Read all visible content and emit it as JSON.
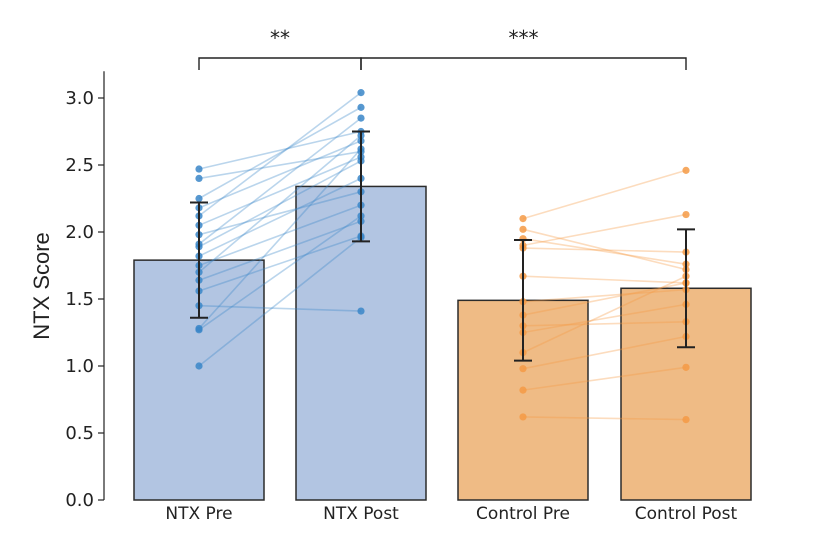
{
  "chart_data": {
    "type": "bar",
    "ylabel": "NTX Score",
    "ylim": [
      0,
      3.2
    ],
    "yticks": [
      "0.0",
      "0.5",
      "1.0",
      "1.5",
      "2.0",
      "2.5",
      "3.0"
    ],
    "categories": [
      "NTX Pre",
      "NTX Post",
      "Control Pre",
      "Control Post"
    ],
    "values": [
      1.79,
      2.34,
      1.49,
      1.58
    ],
    "errors": [
      0.43,
      0.41,
      0.45,
      0.44
    ],
    "bar_colors": [
      "#b2c5e2",
      "#b2c5e2",
      "#efbb85",
      "#efbb85"
    ],
    "point_colors": [
      "#3a86c8",
      "#3a86c8",
      "#f59a45",
      "#f59a45"
    ],
    "paired_points": [
      {
        "group": "NTX",
        "pre": [
          2.47,
          2.4,
          2.25,
          2.18,
          2.12,
          2.05,
          1.98,
          1.91,
          1.89,
          1.82,
          1.75,
          1.7,
          1.64,
          1.56,
          1.45,
          1.28,
          1.27,
          1.0
        ],
        "post": [
          2.75,
          2.6,
          2.93,
          2.68,
          3.04,
          2.56,
          2.3,
          2.85,
          2.53,
          2.4,
          2.2,
          2.72,
          2.08,
          1.97,
          1.41,
          2.62,
          2.12,
          1.96
        ]
      },
      {
        "group": "Control",
        "pre": [
          2.1,
          2.02,
          1.95,
          1.9,
          1.88,
          1.67,
          1.48,
          1.38,
          1.3,
          1.25,
          1.1,
          0.98,
          0.82,
          0.62
        ],
        "post": [
          2.46,
          1.72,
          1.76,
          2.13,
          1.85,
          1.62,
          1.57,
          1.62,
          1.33,
          1.46,
          1.67,
          1.22,
          0.99,
          0.6
        ]
      }
    ],
    "significance": [
      {
        "from": 0,
        "to": 1,
        "label": "**"
      },
      {
        "from": 1,
        "to": 3,
        "label": "***"
      }
    ],
    "grid": false
  }
}
